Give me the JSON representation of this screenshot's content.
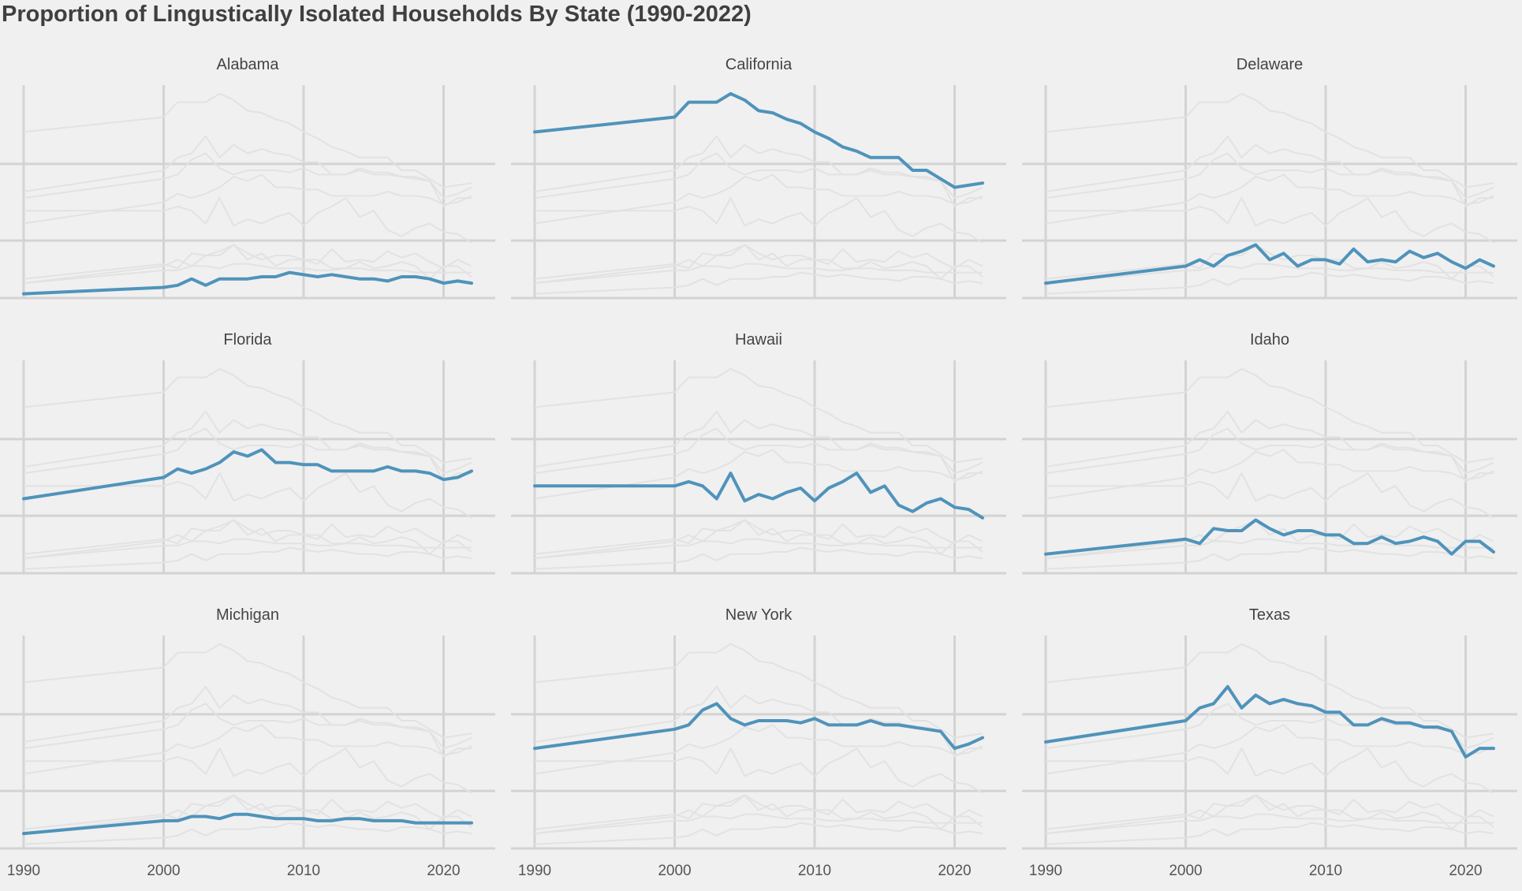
{
  "chart_data": {
    "type": "line",
    "title": "Proportion of Lingustically Isolated Households By State (1990-2022)",
    "xlabel": "",
    "ylabel": "",
    "xlim": [
      1990,
      2022
    ],
    "ylim": [
      0,
      1
    ],
    "x_ticks": [
      1990,
      2000,
      2010,
      2020
    ],
    "x_tick_labels": [
      "1990",
      "2000",
      "2010",
      "2020"
    ],
    "y_ticks": [
      0.27,
      0.63
    ],
    "y_tick_labels_shown": false,
    "grid": true,
    "highlight_color": "#4f93bb",
    "background_color": "#e2e2e2",
    "facet_layout": "3x3",
    "x": [
      1990,
      2000,
      2001,
      2002,
      2003,
      2004,
      2005,
      2006,
      2007,
      2008,
      2009,
      2010,
      2011,
      2012,
      2013,
      2014,
      2015,
      2016,
      2017,
      2018,
      2019,
      2020,
      2021,
      2022
    ],
    "series": [
      {
        "name": "Alabama",
        "values": [
          0.02,
          0.05,
          0.06,
          0.09,
          0.06,
          0.09,
          0.09,
          0.09,
          0.1,
          0.1,
          0.12,
          0.11,
          0.1,
          0.11,
          0.1,
          0.09,
          0.09,
          0.08,
          0.1,
          0.1,
          0.09,
          0.07,
          0.08,
          0.07
        ]
      },
      {
        "name": "California",
        "values": [
          0.78,
          0.85,
          0.92,
          0.92,
          0.92,
          0.96,
          0.93,
          0.88,
          0.87,
          0.84,
          0.82,
          0.78,
          0.75,
          0.71,
          0.69,
          0.66,
          0.66,
          0.66,
          0.6,
          0.6,
          0.56,
          0.52,
          0.53,
          0.54
        ]
      },
      {
        "name": "Delaware",
        "values": [
          0.07,
          0.15,
          0.18,
          0.15,
          0.2,
          0.22,
          0.25,
          0.18,
          0.21,
          0.15,
          0.18,
          0.18,
          0.16,
          0.23,
          0.17,
          0.18,
          0.17,
          0.22,
          0.19,
          0.21,
          0.17,
          0.14,
          0.18,
          0.15
        ]
      },
      {
        "name": "Florida",
        "values": [
          0.35,
          0.45,
          0.49,
          0.47,
          0.49,
          0.52,
          0.57,
          0.55,
          0.58,
          0.52,
          0.52,
          0.51,
          0.51,
          0.48,
          0.48,
          0.48,
          0.48,
          0.5,
          0.48,
          0.48,
          0.47,
          0.44,
          0.45,
          0.48
        ]
      },
      {
        "name": "Hawaii",
        "values": [
          0.41,
          0.41,
          0.43,
          0.41,
          0.35,
          0.47,
          0.34,
          0.37,
          0.35,
          0.38,
          0.4,
          0.34,
          0.4,
          0.43,
          0.47,
          0.38,
          0.41,
          0.32,
          0.29,
          0.33,
          0.35,
          0.31,
          0.3,
          0.26
        ]
      },
      {
        "name": "Idaho",
        "values": [
          0.09,
          0.16,
          0.14,
          0.21,
          0.2,
          0.2,
          0.25,
          0.21,
          0.18,
          0.2,
          0.2,
          0.18,
          0.18,
          0.14,
          0.14,
          0.17,
          0.14,
          0.15,
          0.17,
          0.15,
          0.09,
          0.15,
          0.15,
          0.1
        ]
      },
      {
        "name": "Michigan",
        "values": [
          0.07,
          0.13,
          0.13,
          0.15,
          0.15,
          0.14,
          0.16,
          0.16,
          0.15,
          0.14,
          0.14,
          0.14,
          0.13,
          0.13,
          0.14,
          0.14,
          0.13,
          0.13,
          0.13,
          0.12,
          0.12,
          0.12,
          0.12,
          0.12
        ]
      },
      {
        "name": "New York",
        "values": [
          0.47,
          0.56,
          0.58,
          0.65,
          0.68,
          0.61,
          0.58,
          0.6,
          0.6,
          0.6,
          0.59,
          0.61,
          0.58,
          0.58,
          0.58,
          0.6,
          0.58,
          0.58,
          0.57,
          0.56,
          0.55,
          0.47,
          0.49,
          0.52
        ]
      },
      {
        "name": "Texas",
        "values": [
          0.5,
          0.6,
          0.66,
          0.68,
          0.76,
          0.66,
          0.72,
          0.68,
          0.7,
          0.68,
          0.67,
          0.64,
          0.64,
          0.58,
          0.58,
          0.61,
          0.59,
          0.59,
          0.57,
          0.57,
          0.55,
          0.43,
          0.47,
          0.47
        ]
      }
    ]
  }
}
